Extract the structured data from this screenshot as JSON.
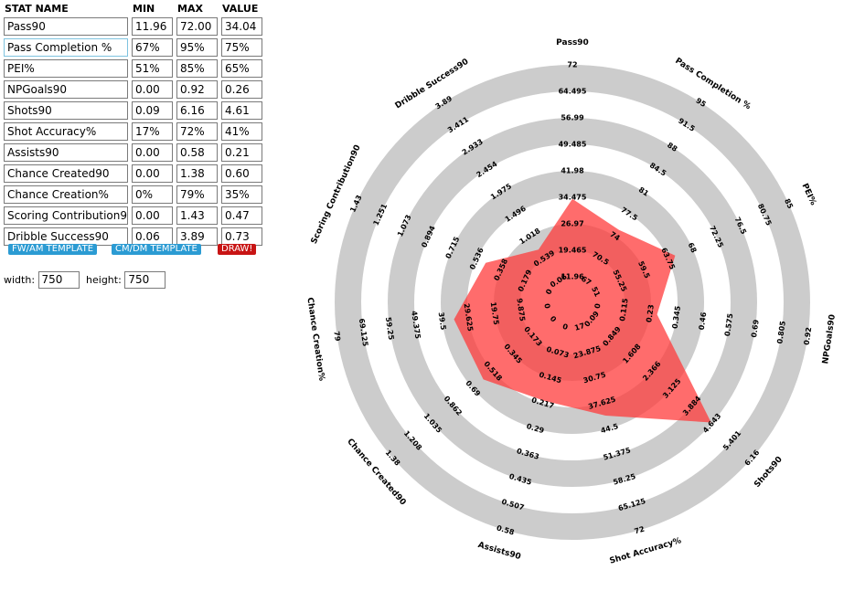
{
  "table": {
    "headers": [
      "STAT NAME",
      "MIN",
      "MAX",
      "VALUE"
    ],
    "rows": [
      {
        "name": "Pass90",
        "min": "11.96",
        "max": "72.00",
        "value": "34.04"
      },
      {
        "name": "Pass Completion %",
        "min": "67%",
        "max": "95%",
        "value": "75%"
      },
      {
        "name": "PEI%",
        "min": "51%",
        "max": "85%",
        "value": "65%"
      },
      {
        "name": "NPGoals90",
        "min": "0.00",
        "max": "0.92",
        "value": "0.26"
      },
      {
        "name": "Shots90",
        "min": "0.09",
        "max": "6.16",
        "value": "4.61"
      },
      {
        "name": "Shot Accuracy%",
        "min": "17%",
        "max": "72%",
        "value": "41%"
      },
      {
        "name": "Assists90",
        "min": "0.00",
        "max": "0.58",
        "value": "0.21"
      },
      {
        "name": "Chance Created90",
        "min": "0.00",
        "max": "1.38",
        "value": "0.60"
      },
      {
        "name": "Chance Creation%",
        "min": "0%",
        "max": "79%",
        "value": "35%"
      },
      {
        "name": "Scoring Contribution90",
        "min": "0.00",
        "max": "1.43",
        "value": "0.47"
      },
      {
        "name": "Dribble Success90",
        "min": "0.06",
        "max": "3.89",
        "value": "0.73"
      }
    ]
  },
  "buttons": {
    "fw_template": "FW/AM TEMPLATE",
    "cm_template": "CM/DM TEMPLATE",
    "draw": "DRAW!"
  },
  "dimensions": {
    "width_label": "width:",
    "width_value": "750",
    "height_label": "height:",
    "height_value": "750"
  },
  "colors": {
    "ring": "#cccccc",
    "polygon": "#ff3b3b",
    "button_blue": "#2b9bd3",
    "button_red": "#c81414",
    "focus_border": "#7ec3df"
  },
  "chart_data": {
    "type": "radar",
    "title": "",
    "axes": [
      {
        "label": "Pass90",
        "min": 11.96,
        "max": 72,
        "value": 34.04,
        "ticks": [
          "11.96",
          "19.465",
          "26.97",
          "34.475",
          "41.98",
          "49.485",
          "56.99",
          "64.495",
          "72"
        ]
      },
      {
        "label": "Pass Completion %",
        "min": 67,
        "max": 95,
        "value": 75,
        "ticks": [
          "67",
          "70.5",
          "74",
          "77.5",
          "81",
          "84.5",
          "88",
          "91.5",
          "95"
        ]
      },
      {
        "label": "PEI%",
        "min": 51,
        "max": 85,
        "value": 65,
        "ticks": [
          "51",
          "55.25",
          "59.5",
          "63.75",
          "68",
          "72.25",
          "76.5",
          "80.75",
          "85"
        ]
      },
      {
        "label": "NPGoals90",
        "min": 0,
        "max": 0.92,
        "value": 0.26,
        "ticks": [
          "0",
          "0.115",
          "0.23",
          "0.345",
          "0.46",
          "0.575",
          "0.69",
          "0.805",
          "0.92"
        ]
      },
      {
        "label": "Shots90",
        "min": 0.09,
        "max": 6.16,
        "value": 4.61,
        "ticks": [
          "0.09",
          "0.849",
          "1.608",
          "2.366",
          "3.125",
          "3.884",
          "4.643",
          "5.401",
          "6.16"
        ]
      },
      {
        "label": "Shot Accuracy%",
        "min": 17,
        "max": 72,
        "value": 41,
        "ticks": [
          "17",
          "23.875",
          "30.75",
          "37.625",
          "44.5",
          "51.375",
          "58.25",
          "65.125",
          "72"
        ]
      },
      {
        "label": "Assists90",
        "min": 0,
        "max": 0.58,
        "value": 0.21,
        "ticks": [
          "0",
          "0.073",
          "0.145",
          "0.217",
          "0.29",
          "0.363",
          "0.435",
          "0.507",
          "0.58"
        ]
      },
      {
        "label": "Chance Created90",
        "min": 0,
        "max": 1.38,
        "value": 0.6,
        "ticks": [
          "0",
          "0.173",
          "0.345",
          "0.518",
          "0.69",
          "0.862",
          "1.035",
          "1.208",
          "1.38"
        ]
      },
      {
        "label": "Chance Creation%",
        "min": 0,
        "max": 79,
        "value": 35,
        "ticks": [
          "0",
          "9.875",
          "19.75",
          "29.625",
          "39.5",
          "49.375",
          "59.25",
          "69.125",
          "79"
        ]
      },
      {
        "label": "Scoring Contribution90",
        "min": 0,
        "max": 1.43,
        "value": 0.47,
        "ticks": [
          "0",
          "0.179",
          "0.358",
          "0.536",
          "0.715",
          "0.894",
          "1.073",
          "1.251",
          "1.43"
        ]
      },
      {
        "label": "Dribble Success90",
        "min": 0.06,
        "max": 3.89,
        "value": 0.73,
        "ticks": [
          "0.06",
          "0.539",
          "1.018",
          "1.496",
          "1.975",
          "2.454",
          "2.933",
          "3.411",
          "3.89"
        ]
      }
    ]
  }
}
